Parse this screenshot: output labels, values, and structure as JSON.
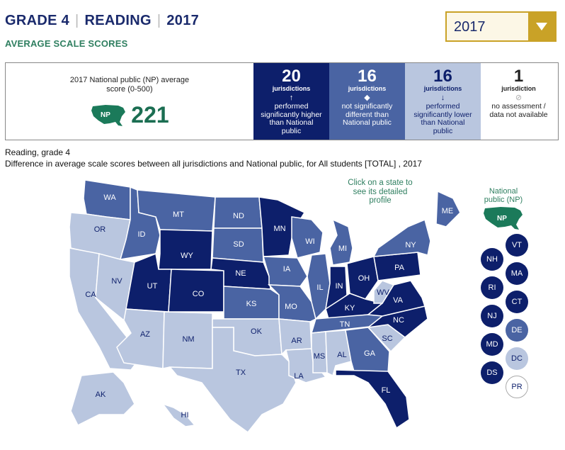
{
  "header": {
    "grade": "GRADE 4",
    "subject": "READING",
    "year": "2017",
    "separator": "|",
    "subtitle": "AVERAGE SCALE SCORES"
  },
  "year_select": {
    "selected": "2017",
    "icon": "caret-down-icon"
  },
  "summary": {
    "np_label": "2017 National public (NP) average score (0-500)",
    "np_badge": "NP",
    "np_score": "221",
    "cells": [
      {
        "count": "20",
        "unit": "jurisdictions",
        "symbol": "↑",
        "desc": "performed significantly higher than National public",
        "category": "higher"
      },
      {
        "count": "16",
        "unit": "jurisdictions",
        "symbol": "◆",
        "desc": "not significantly different than National public",
        "category": "same"
      },
      {
        "count": "16",
        "unit": "jurisdictions",
        "symbol": "↓",
        "desc": "performed significantly lower than National public",
        "category": "lower"
      },
      {
        "count": "1",
        "unit": "jurisdiction",
        "symbol": "⊘",
        "desc": "no assessment / data not available",
        "category": "none"
      }
    ]
  },
  "caption": {
    "line1": "Reading, grade 4",
    "line2": "Difference in average scale scores between all jurisdictions and National public, for All students [TOTAL] , 2017"
  },
  "map": {
    "click_note": "Click on a state to see its detailed profile",
    "np_legend_label": "National public (NP)",
    "np_legend_badge": "NP",
    "colors": {
      "higher": "#0d1f6b",
      "same": "#4a64a3",
      "lower": "#b9c6df",
      "none": "#ffffff",
      "np": "#1b7a5a"
    },
    "states": [
      {
        "abbr": "WA",
        "cat": "same"
      },
      {
        "abbr": "OR",
        "cat": "lower"
      },
      {
        "abbr": "CA",
        "cat": "lower"
      },
      {
        "abbr": "ID",
        "cat": "same"
      },
      {
        "abbr": "NV",
        "cat": "lower"
      },
      {
        "abbr": "MT",
        "cat": "same"
      },
      {
        "abbr": "WY",
        "cat": "higher"
      },
      {
        "abbr": "UT",
        "cat": "higher"
      },
      {
        "abbr": "CO",
        "cat": "higher"
      },
      {
        "abbr": "AZ",
        "cat": "lower"
      },
      {
        "abbr": "NM",
        "cat": "lower"
      },
      {
        "abbr": "ND",
        "cat": "same"
      },
      {
        "abbr": "SD",
        "cat": "same"
      },
      {
        "abbr": "NE",
        "cat": "higher"
      },
      {
        "abbr": "KS",
        "cat": "same"
      },
      {
        "abbr": "OK",
        "cat": "lower"
      },
      {
        "abbr": "TX",
        "cat": "lower"
      },
      {
        "abbr": "MN",
        "cat": "higher"
      },
      {
        "abbr": "IA",
        "cat": "same"
      },
      {
        "abbr": "MO",
        "cat": "same"
      },
      {
        "abbr": "AR",
        "cat": "lower"
      },
      {
        "abbr": "LA",
        "cat": "lower"
      },
      {
        "abbr": "WI",
        "cat": "same"
      },
      {
        "abbr": "IL",
        "cat": "same"
      },
      {
        "abbr": "MI",
        "cat": "same"
      },
      {
        "abbr": "IN",
        "cat": "higher"
      },
      {
        "abbr": "OH",
        "cat": "higher"
      },
      {
        "abbr": "KY",
        "cat": "higher"
      },
      {
        "abbr": "TN",
        "cat": "same"
      },
      {
        "abbr": "MS",
        "cat": "lower"
      },
      {
        "abbr": "AL",
        "cat": "lower"
      },
      {
        "abbr": "GA",
        "cat": "same"
      },
      {
        "abbr": "FL",
        "cat": "higher"
      },
      {
        "abbr": "SC",
        "cat": "lower"
      },
      {
        "abbr": "NC",
        "cat": "higher"
      },
      {
        "abbr": "VA",
        "cat": "higher"
      },
      {
        "abbr": "WV",
        "cat": "lower"
      },
      {
        "abbr": "PA",
        "cat": "higher"
      },
      {
        "abbr": "NY",
        "cat": "same"
      },
      {
        "abbr": "ME",
        "cat": "same"
      },
      {
        "abbr": "AK",
        "cat": "lower"
      },
      {
        "abbr": "HI",
        "cat": "lower"
      }
    ],
    "small_states": [
      {
        "abbr": "VT",
        "cat": "higher"
      },
      {
        "abbr": "NH",
        "cat": "higher"
      },
      {
        "abbr": "MA",
        "cat": "higher"
      },
      {
        "abbr": "RI",
        "cat": "higher"
      },
      {
        "abbr": "CT",
        "cat": "higher"
      },
      {
        "abbr": "NJ",
        "cat": "higher"
      },
      {
        "abbr": "DE",
        "cat": "same"
      },
      {
        "abbr": "MD",
        "cat": "higher"
      },
      {
        "abbr": "DC",
        "cat": "lower"
      },
      {
        "abbr": "DS",
        "cat": "higher"
      },
      {
        "abbr": "PR",
        "cat": "none"
      }
    ]
  }
}
